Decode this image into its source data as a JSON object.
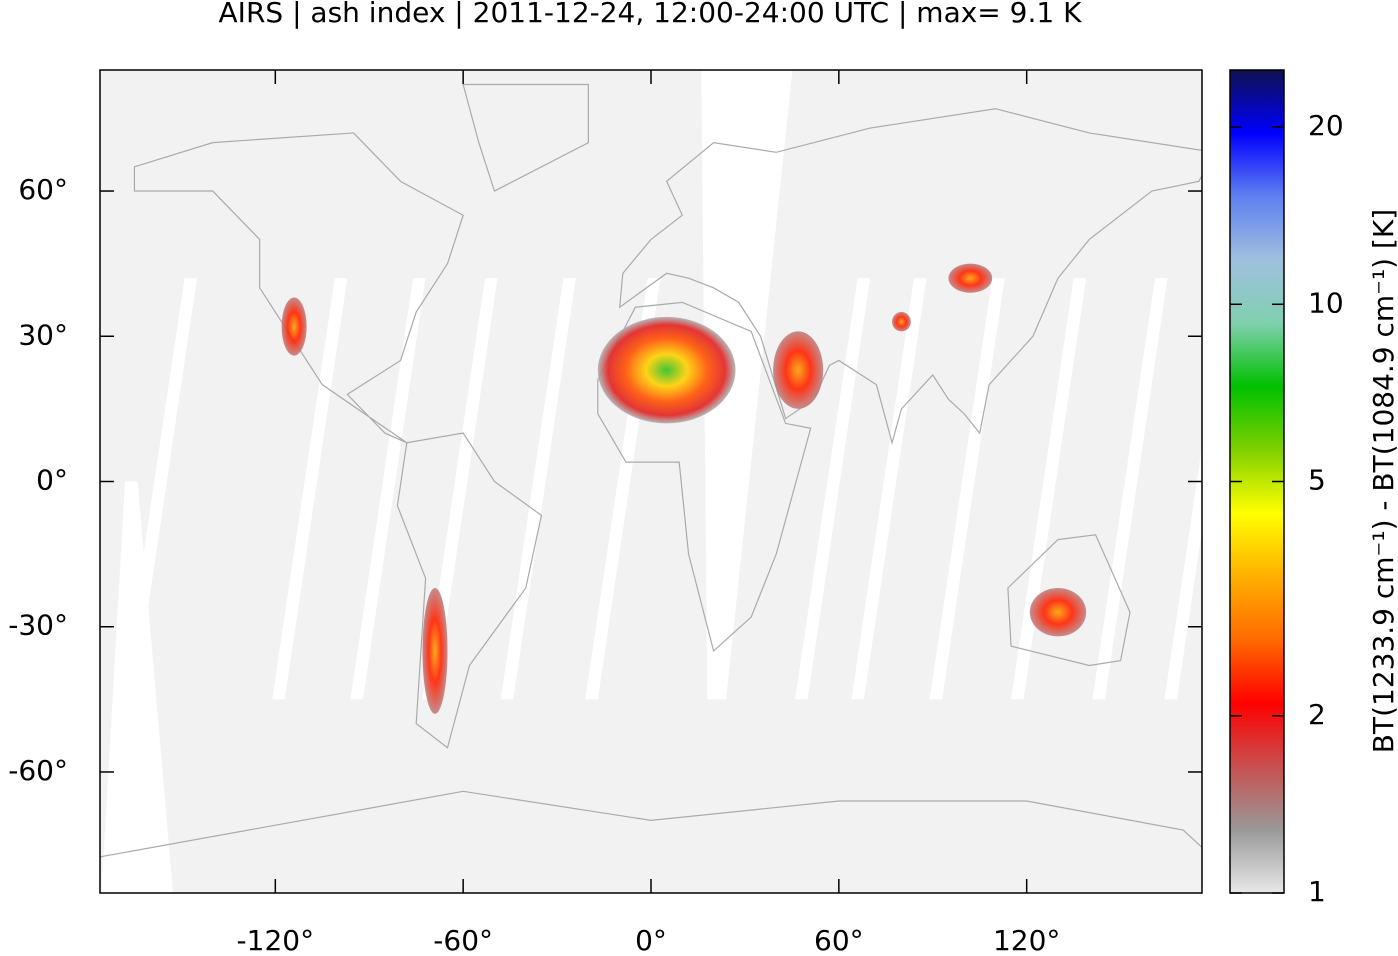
{
  "chart_data": {
    "type": "map",
    "title": "AIRS | ash index | 2011-12-24, 12:00-24:00 UTC | max= 9.1 K",
    "xlim": [
      -176,
      176
    ],
    "ylim": [
      -85,
      85
    ],
    "xticks": [
      {
        "value": -120,
        "label": "-120°"
      },
      {
        "value": -60,
        "label": "-60°"
      },
      {
        "value": 0,
        "label": "0°"
      },
      {
        "value": 60,
        "label": "60°"
      },
      {
        "value": 120,
        "label": "120°"
      }
    ],
    "yticks": [
      {
        "value": -60,
        "label": "-60°"
      },
      {
        "value": -30,
        "label": "-30°"
      },
      {
        "value": 0,
        "label": "0°"
      },
      {
        "value": 30,
        "label": "30°"
      },
      {
        "value": 60,
        "label": "60°"
      }
    ],
    "colorbar": {
      "label": "BT(1233.9 cm⁻¹) - BT(1084.9 cm⁻¹) [K]",
      "log": true,
      "lim": [
        1,
        25
      ],
      "ticks": [
        1,
        2,
        5,
        10,
        20
      ],
      "colors": [
        "#e8e8e8",
        "#999999",
        "#c85050",
        "#ff0000",
        "#ff6a00",
        "#ffb000",
        "#ffff00",
        "#80d000",
        "#00c000",
        "#80d0b0",
        "#a0c0e0",
        "#6080f0",
        "#0000ff",
        "#101050"
      ]
    }
  }
}
